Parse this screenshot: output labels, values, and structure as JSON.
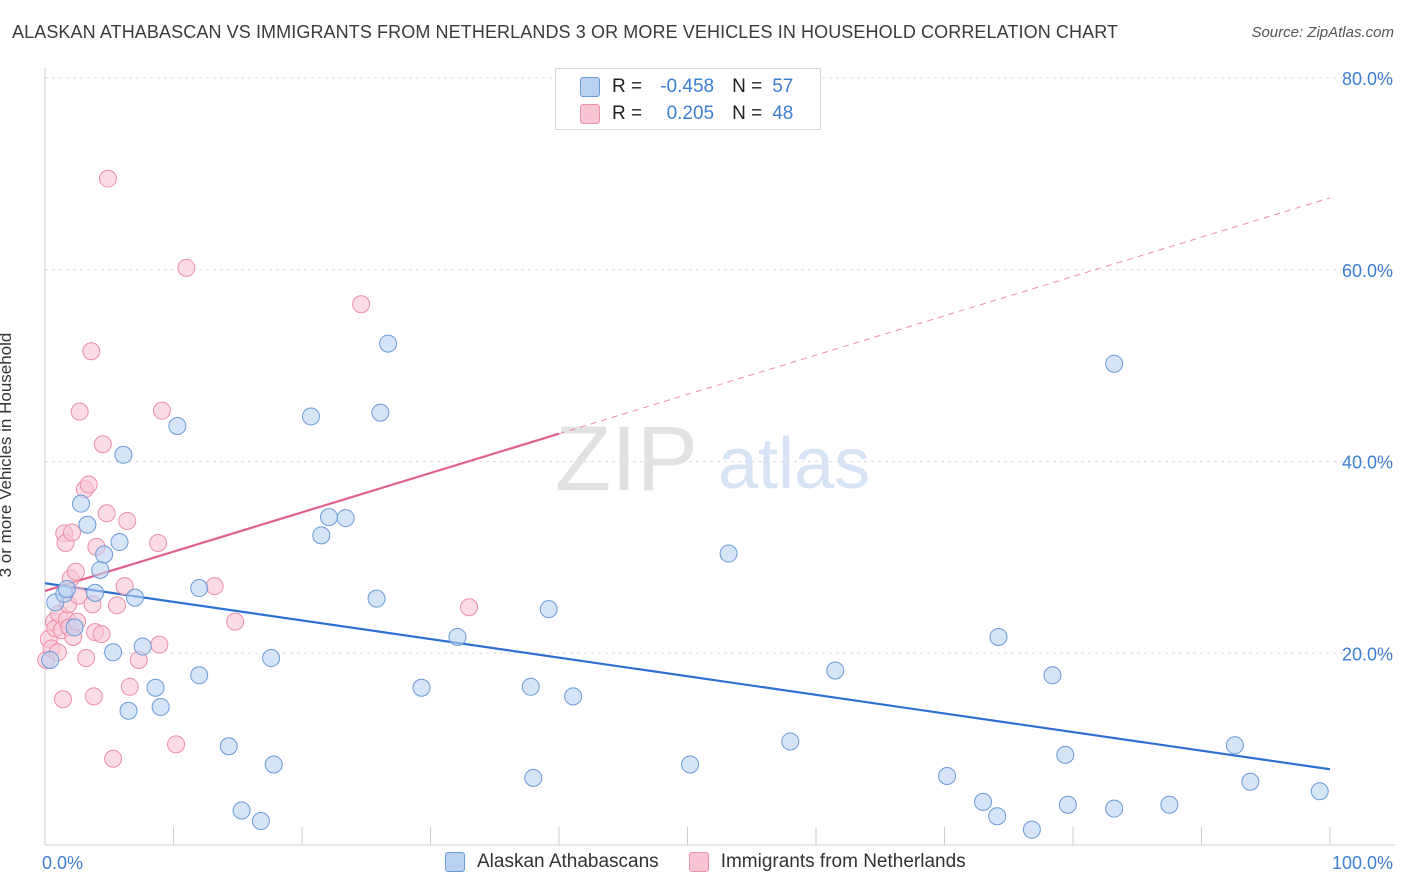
{
  "title": "ALASKAN ATHABASCAN VS IMMIGRANTS FROM NETHERLANDS 3 OR MORE VEHICLES IN HOUSEHOLD CORRELATION CHART",
  "source": "Source: ZipAtlas.com",
  "watermark": {
    "zip": "ZIP",
    "atlas": "atlas"
  },
  "legend_top": {
    "rows": [
      {
        "r_label": "R =",
        "r_value": "-0.458",
        "n_label": "N =",
        "n_value": "57"
      },
      {
        "r_label": "R =",
        "r_value": "0.205",
        "n_label": "N =",
        "n_value": "48"
      }
    ]
  },
  "legend_bottom": {
    "items": [
      {
        "label": "Alaskan Athabascans"
      },
      {
        "label": "Immigrants from Netherlands"
      }
    ]
  },
  "colors": {
    "blue_fill": "#b9d2f1",
    "blue_stroke": "#6b9bd8",
    "blue_line": "#2f6fd3",
    "pink_fill": "#f8c5d4",
    "pink_stroke": "#ec8fab",
    "pink_line": "#e2608e",
    "tick_label": "#3d7fd1",
    "grid": "#dddddd"
  },
  "chart_data": {
    "type": "scatter",
    "title": "ALASKAN ATHABASCAN VS IMMIGRANTS FROM NETHERLANDS 3 OR MORE VEHICLES IN HOUSEHOLD CORRELATION CHART",
    "xlabel": "",
    "ylabel": "3 or more Vehicles in Household",
    "xlim": [
      0,
      100
    ],
    "ylim": [
      0,
      80
    ],
    "x_tick_labels": [
      "0.0%",
      "100.0%"
    ],
    "y_ticks": [
      20,
      40,
      60,
      80
    ],
    "y_tick_labels": [
      "20.0%",
      "40.0%",
      "60.0%",
      "80.0%"
    ],
    "grid": true,
    "legend_position": "top-center",
    "series": [
      {
        "name": "Alaskan Athabascans",
        "r": -0.458,
        "n": 57,
        "trend": {
          "x": [
            0,
            100
          ],
          "y": [
            27.3,
            7.9
          ],
          "dashed_beyond": null
        },
        "points": [
          [
            0.4,
            19.3
          ],
          [
            0.8,
            25.3
          ],
          [
            1.5,
            26.2
          ],
          [
            1.7,
            26.7
          ],
          [
            2.3,
            22.7
          ],
          [
            2.8,
            35.6
          ],
          [
            3.3,
            33.4
          ],
          [
            3.9,
            26.3
          ],
          [
            4.3,
            28.7
          ],
          [
            4.6,
            30.3
          ],
          [
            5.3,
            20.1
          ],
          [
            5.8,
            31.6
          ],
          [
            6.1,
            40.7
          ],
          [
            6.5,
            14.0
          ],
          [
            7.0,
            25.8
          ],
          [
            7.6,
            20.7
          ],
          [
            8.6,
            16.4
          ],
          [
            9.0,
            14.4
          ],
          [
            10.3,
            43.7
          ],
          [
            12.0,
            17.7
          ],
          [
            12.0,
            26.8
          ],
          [
            14.3,
            10.3
          ],
          [
            15.3,
            3.6
          ],
          [
            16.8,
            2.5
          ],
          [
            17.6,
            19.5
          ],
          [
            17.8,
            8.4
          ],
          [
            20.7,
            44.7
          ],
          [
            21.5,
            32.3
          ],
          [
            22.1,
            34.2
          ],
          [
            23.4,
            34.1
          ],
          [
            25.8,
            25.7
          ],
          [
            26.1,
            45.1
          ],
          [
            26.7,
            52.3
          ],
          [
            29.3,
            16.4
          ],
          [
            32.1,
            21.7
          ],
          [
            37.8,
            16.5
          ],
          [
            38.0,
            7.0
          ],
          [
            39.2,
            24.6
          ],
          [
            41.1,
            15.5
          ],
          [
            50.2,
            8.4
          ],
          [
            53.2,
            30.4
          ],
          [
            58.0,
            10.8
          ],
          [
            61.5,
            18.2
          ],
          [
            70.2,
            7.2
          ],
          [
            73.0,
            4.5
          ],
          [
            74.1,
            3.0
          ],
          [
            74.2,
            21.7
          ],
          [
            76.8,
            1.6
          ],
          [
            78.4,
            17.7
          ],
          [
            79.4,
            9.4
          ],
          [
            79.6,
            4.2
          ],
          [
            83.2,
            50.2
          ],
          [
            83.2,
            3.8
          ],
          [
            87.5,
            4.2
          ],
          [
            92.6,
            10.4
          ],
          [
            93.8,
            6.6
          ],
          [
            99.2,
            5.6
          ]
        ]
      },
      {
        "name": "Immigrants from Netherlands",
        "r": 0.205,
        "n": 48,
        "trend": {
          "x": [
            0,
            100
          ],
          "y": [
            26.5,
            67.5
          ],
          "solid_until_x": 40
        },
        "points": [
          [
            0.1,
            19.3
          ],
          [
            0.3,
            21.5
          ],
          [
            0.5,
            20.5
          ],
          [
            0.7,
            23.3
          ],
          [
            0.8,
            22.6
          ],
          [
            1.0,
            20.1
          ],
          [
            1.1,
            24.1
          ],
          [
            1.3,
            22.4
          ],
          [
            1.4,
            15.2
          ],
          [
            1.5,
            32.5
          ],
          [
            1.6,
            31.5
          ],
          [
            1.7,
            23.5
          ],
          [
            1.8,
            25.1
          ],
          [
            1.9,
            22.7
          ],
          [
            2.0,
            27.8
          ],
          [
            2.1,
            32.6
          ],
          [
            2.2,
            21.7
          ],
          [
            2.4,
            28.5
          ],
          [
            2.5,
            23.3
          ],
          [
            2.6,
            26.0
          ],
          [
            2.7,
            45.2
          ],
          [
            3.1,
            37.1
          ],
          [
            3.2,
            19.5
          ],
          [
            3.4,
            37.6
          ],
          [
            3.6,
            51.5
          ],
          [
            3.7,
            25.1
          ],
          [
            3.8,
            15.5
          ],
          [
            3.9,
            22.2
          ],
          [
            4.0,
            31.1
          ],
          [
            4.4,
            22.0
          ],
          [
            4.5,
            41.8
          ],
          [
            4.8,
            34.6
          ],
          [
            4.9,
            69.5
          ],
          [
            5.3,
            9.0
          ],
          [
            5.6,
            25.0
          ],
          [
            6.2,
            27.0
          ],
          [
            6.4,
            33.8
          ],
          [
            6.6,
            16.5
          ],
          [
            7.3,
            19.3
          ],
          [
            8.8,
            31.5
          ],
          [
            8.9,
            20.9
          ],
          [
            9.1,
            45.3
          ],
          [
            10.2,
            10.5
          ],
          [
            11.0,
            60.2
          ],
          [
            13.2,
            27.0
          ],
          [
            14.8,
            23.3
          ],
          [
            24.6,
            56.4
          ],
          [
            33.0,
            24.8
          ]
        ]
      }
    ]
  }
}
